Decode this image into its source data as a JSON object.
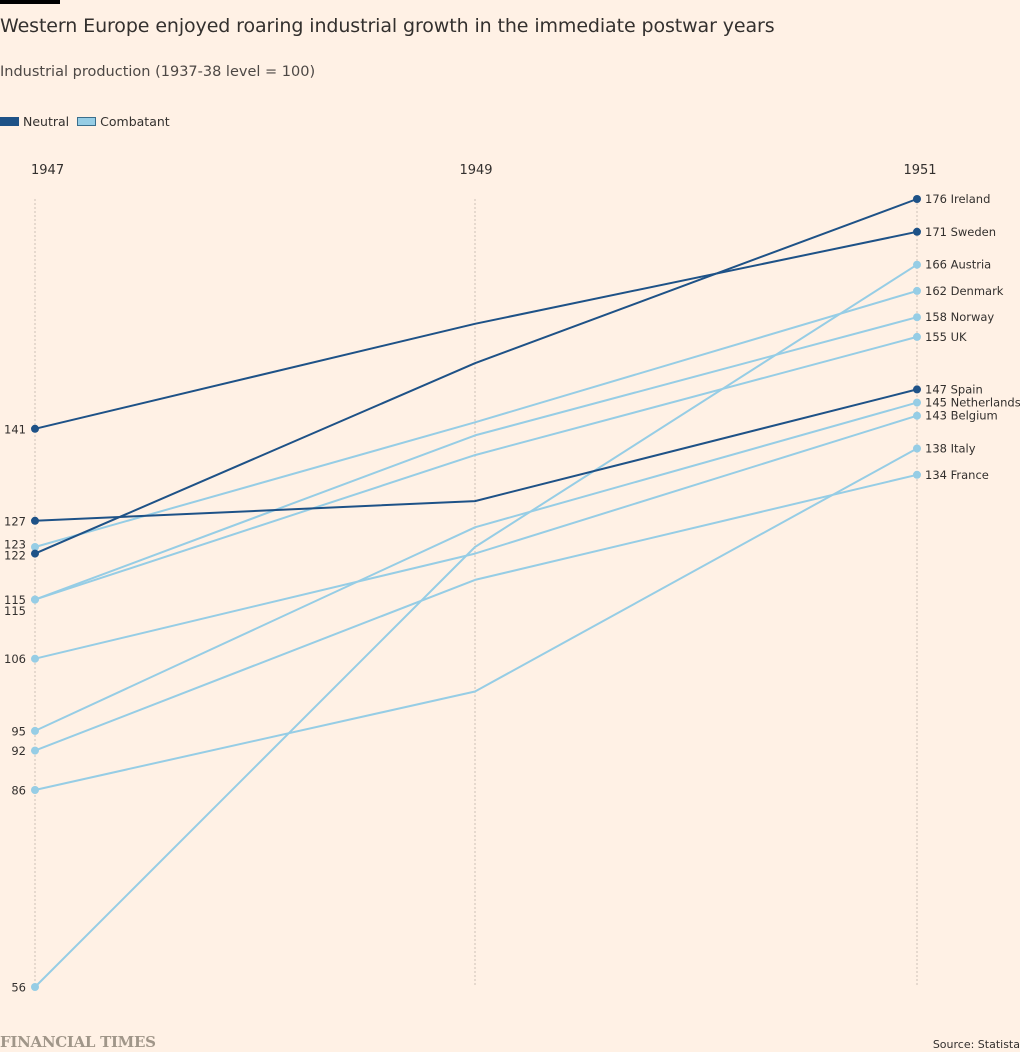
{
  "header": {
    "title": "Western Europe enjoyed roaring industrial growth in the immediate postwar years",
    "subtitle": "Industrial production (1937-38 level = 100)"
  },
  "legend": [
    {
      "label": "Neutral",
      "color": "#1e5287"
    },
    {
      "label": "Combatant",
      "color": "#96cde5"
    }
  ],
  "footer": {
    "brand": "FINANCIAL TIMES",
    "source": "Source: Statista"
  },
  "chart_data": {
    "type": "line",
    "title": "Western Europe enjoyed roaring industrial growth in the immediate postwar years",
    "subtitle": "Industrial production (1937-38 level = 100)",
    "x": [
      "1947",
      "1949",
      "1951"
    ],
    "xlabel": "",
    "ylabel": "Industrial production (1937-38 level = 100)",
    "ylim": [
      56,
      176
    ],
    "grid": "vertical dashed at each year",
    "legend_position": "top-left",
    "colors": {
      "Neutral": "#1e5287",
      "Combatant": "#96cde5"
    },
    "series": [
      {
        "name": "Ireland",
        "group": "Neutral",
        "values": [
          122,
          151,
          176
        ]
      },
      {
        "name": "Sweden",
        "group": "Neutral",
        "values": [
          141,
          157,
          171
        ]
      },
      {
        "name": "Austria",
        "group": "Combatant",
        "values": [
          56,
          123,
          166
        ]
      },
      {
        "name": "Denmark",
        "group": "Combatant",
        "values": [
          123,
          142,
          162
        ]
      },
      {
        "name": "Norway",
        "group": "Combatant",
        "values": [
          115,
          140,
          158
        ]
      },
      {
        "name": "UK",
        "group": "Combatant",
        "values": [
          115,
          137,
          155
        ]
      },
      {
        "name": "Spain",
        "group": "Neutral",
        "values": [
          127,
          130,
          147
        ]
      },
      {
        "name": "Netherlands",
        "group": "Combatant",
        "values": [
          95,
          126,
          145
        ]
      },
      {
        "name": "Belgium",
        "group": "Combatant",
        "values": [
          106,
          122,
          143
        ]
      },
      {
        "name": "Italy",
        "group": "Combatant",
        "values": [
          86,
          101,
          138
        ]
      },
      {
        "name": "France",
        "group": "Combatant",
        "values": [
          92,
          118,
          134
        ]
      }
    ],
    "start_labels": [
      "141",
      "127",
      "123",
      "122",
      "115",
      "115",
      "106",
      "95",
      "92",
      "86",
      "56"
    ],
    "end_labels": [
      "176 Ireland",
      "171 Sweden",
      "166 Austria",
      "162 Denmark",
      "158 Norway",
      "155 UK",
      "147 Spain",
      "145 Netherlands",
      "143 Belgium",
      "138 Italy",
      "134 France"
    ]
  }
}
